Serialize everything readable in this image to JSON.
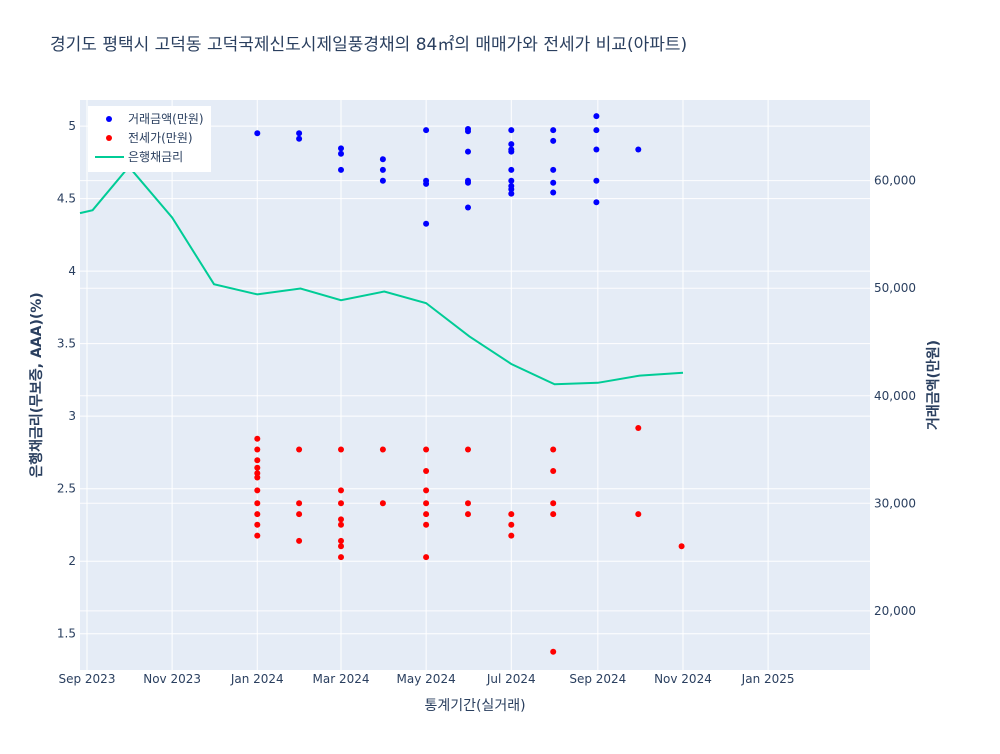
{
  "chart_data": {
    "type": "scatter",
    "title": "경기도 평택시 고덕동 고덕국제신도시제일풍경채의 84㎡의 매매가와 전세가 비교(아파트)",
    "xlabel": "통계기간(실거래)",
    "ylabel_left": "은행채금리(무보증, AAA)(%)",
    "ylabel_right": "거래금액(만원)",
    "x_range": [
      "2023-08-27",
      "2025-03-15"
    ],
    "y_left_range": [
      1.25,
      5.18
    ],
    "y_right_range": [
      14500,
      67500
    ],
    "x_ticks": [
      {
        "date": "2023-09-01",
        "label": "Sep 2023"
      },
      {
        "date": "2023-11-01",
        "label": "Nov 2023"
      },
      {
        "date": "2024-01-01",
        "label": "Jan 2024"
      },
      {
        "date": "2024-03-01",
        "label": "Mar 2024"
      },
      {
        "date": "2024-05-01",
        "label": "May 2024"
      },
      {
        "date": "2024-07-01",
        "label": "Jul 2024"
      },
      {
        "date": "2024-09-01",
        "label": "Sep 2024"
      },
      {
        "date": "2024-11-01",
        "label": "Nov 2024"
      },
      {
        "date": "2025-01-01",
        "label": "Jan 2025"
      }
    ],
    "y_left_ticks": [
      1.5,
      2,
      2.5,
      3,
      3.5,
      4,
      4.5,
      5
    ],
    "y_left_tick_labels": [
      "1.5",
      "2",
      "2.5",
      "3",
      "3.5",
      "4",
      "4.5",
      "5"
    ],
    "y_right_ticks": [
      20000,
      30000,
      40000,
      50000,
      60000
    ],
    "y_right_tick_labels": [
      "20,000",
      "30,000",
      "40,000",
      "50,000",
      "60,000"
    ],
    "legend_position": "top-left",
    "grid": true,
    "series": [
      {
        "name": "거래금액(만원)",
        "kind": "markers",
        "axis": "right",
        "color": "#0000ff",
        "points": [
          [
            "2024-01-01",
            64400
          ],
          [
            "2024-01-31",
            64400
          ],
          [
            "2024-01-31",
            63900
          ],
          [
            "2024-03-01",
            63000
          ],
          [
            "2024-03-01",
            62500
          ],
          [
            "2024-03-01",
            61000
          ],
          [
            "2024-03-31",
            62000
          ],
          [
            "2024-03-31",
            61000
          ],
          [
            "2024-03-31",
            60000
          ],
          [
            "2024-05-01",
            64700
          ],
          [
            "2024-05-01",
            60000
          ],
          [
            "2024-05-01",
            59700
          ],
          [
            "2024-05-01",
            56000
          ],
          [
            "2024-05-31",
            64800
          ],
          [
            "2024-05-31",
            64600
          ],
          [
            "2024-05-31",
            62700
          ],
          [
            "2024-05-31",
            60000
          ],
          [
            "2024-05-31",
            59800
          ],
          [
            "2024-05-31",
            57500
          ],
          [
            "2024-07-01",
            64700
          ],
          [
            "2024-07-01",
            63400
          ],
          [
            "2024-07-01",
            62900
          ],
          [
            "2024-07-01",
            62700
          ],
          [
            "2024-07-01",
            61000
          ],
          [
            "2024-07-01",
            60000
          ],
          [
            "2024-07-01",
            59500
          ],
          [
            "2024-07-01",
            59200
          ],
          [
            "2024-07-01",
            58800
          ],
          [
            "2024-07-31",
            64700
          ],
          [
            "2024-07-31",
            63700
          ],
          [
            "2024-07-31",
            61000
          ],
          [
            "2024-07-31",
            59800
          ],
          [
            "2024-07-31",
            58900
          ],
          [
            "2024-08-31",
            66000
          ],
          [
            "2024-08-31",
            64700
          ],
          [
            "2024-08-31",
            62900
          ],
          [
            "2024-08-31",
            60000
          ],
          [
            "2024-08-31",
            58000
          ],
          [
            "2024-09-30",
            62900
          ]
        ]
      },
      {
        "name": "전세가(만원)",
        "kind": "markers",
        "axis": "right",
        "color": "#ff0000",
        "points": [
          [
            "2024-01-01",
            36000
          ],
          [
            "2024-01-01",
            35000
          ],
          [
            "2024-01-01",
            34000
          ],
          [
            "2024-01-01",
            33300
          ],
          [
            "2024-01-01",
            32800
          ],
          [
            "2024-01-01",
            32400
          ],
          [
            "2024-01-01",
            31200
          ],
          [
            "2024-01-01",
            30000
          ],
          [
            "2024-01-01",
            29000
          ],
          [
            "2024-01-01",
            28000
          ],
          [
            "2024-01-01",
            27000
          ],
          [
            "2024-01-31",
            35000
          ],
          [
            "2024-01-31",
            30000
          ],
          [
            "2024-01-31",
            29000
          ],
          [
            "2024-01-31",
            26500
          ],
          [
            "2024-03-01",
            35000
          ],
          [
            "2024-03-01",
            31200
          ],
          [
            "2024-03-01",
            30000
          ],
          [
            "2024-03-01",
            28500
          ],
          [
            "2024-03-01",
            28000
          ],
          [
            "2024-03-01",
            26500
          ],
          [
            "2024-03-01",
            26000
          ],
          [
            "2024-03-01",
            25000
          ],
          [
            "2024-03-31",
            35000
          ],
          [
            "2024-03-31",
            30000
          ],
          [
            "2024-05-01",
            35000
          ],
          [
            "2024-05-01",
            33000
          ],
          [
            "2024-05-01",
            31200
          ],
          [
            "2024-05-01",
            30000
          ],
          [
            "2024-05-01",
            29000
          ],
          [
            "2024-05-01",
            28000
          ],
          [
            "2024-05-01",
            25000
          ],
          [
            "2024-05-31",
            35000
          ],
          [
            "2024-05-31",
            30000
          ],
          [
            "2024-05-31",
            29000
          ],
          [
            "2024-07-01",
            29000
          ],
          [
            "2024-07-01",
            28000
          ],
          [
            "2024-07-01",
            27000
          ],
          [
            "2024-07-31",
            35000
          ],
          [
            "2024-07-31",
            33000
          ],
          [
            "2024-07-31",
            30000
          ],
          [
            "2024-07-31",
            29000
          ],
          [
            "2024-07-31",
            16200
          ],
          [
            "2024-09-30",
            37000
          ],
          [
            "2024-09-30",
            29000
          ],
          [
            "2024-10-31",
            26000
          ]
        ]
      },
      {
        "name": "은행채금리",
        "kind": "line",
        "axis": "left",
        "color": "#00cc96",
        "points": [
          [
            "2023-08-27",
            4.4
          ],
          [
            "2023-09-05",
            4.42
          ],
          [
            "2023-10-01",
            4.72
          ],
          [
            "2023-11-01",
            4.37
          ],
          [
            "2023-12-01",
            3.91
          ],
          [
            "2024-01-01",
            3.84
          ],
          [
            "2024-02-01",
            3.88
          ],
          [
            "2024-03-01",
            3.8
          ],
          [
            "2024-04-01",
            3.86
          ],
          [
            "2024-05-01",
            3.78
          ],
          [
            "2024-06-01",
            3.55
          ],
          [
            "2024-07-01",
            3.36
          ],
          [
            "2024-08-01",
            3.22
          ],
          [
            "2024-09-01",
            3.23
          ],
          [
            "2024-10-01",
            3.28
          ],
          [
            "2024-11-01",
            3.3
          ]
        ]
      }
    ]
  }
}
